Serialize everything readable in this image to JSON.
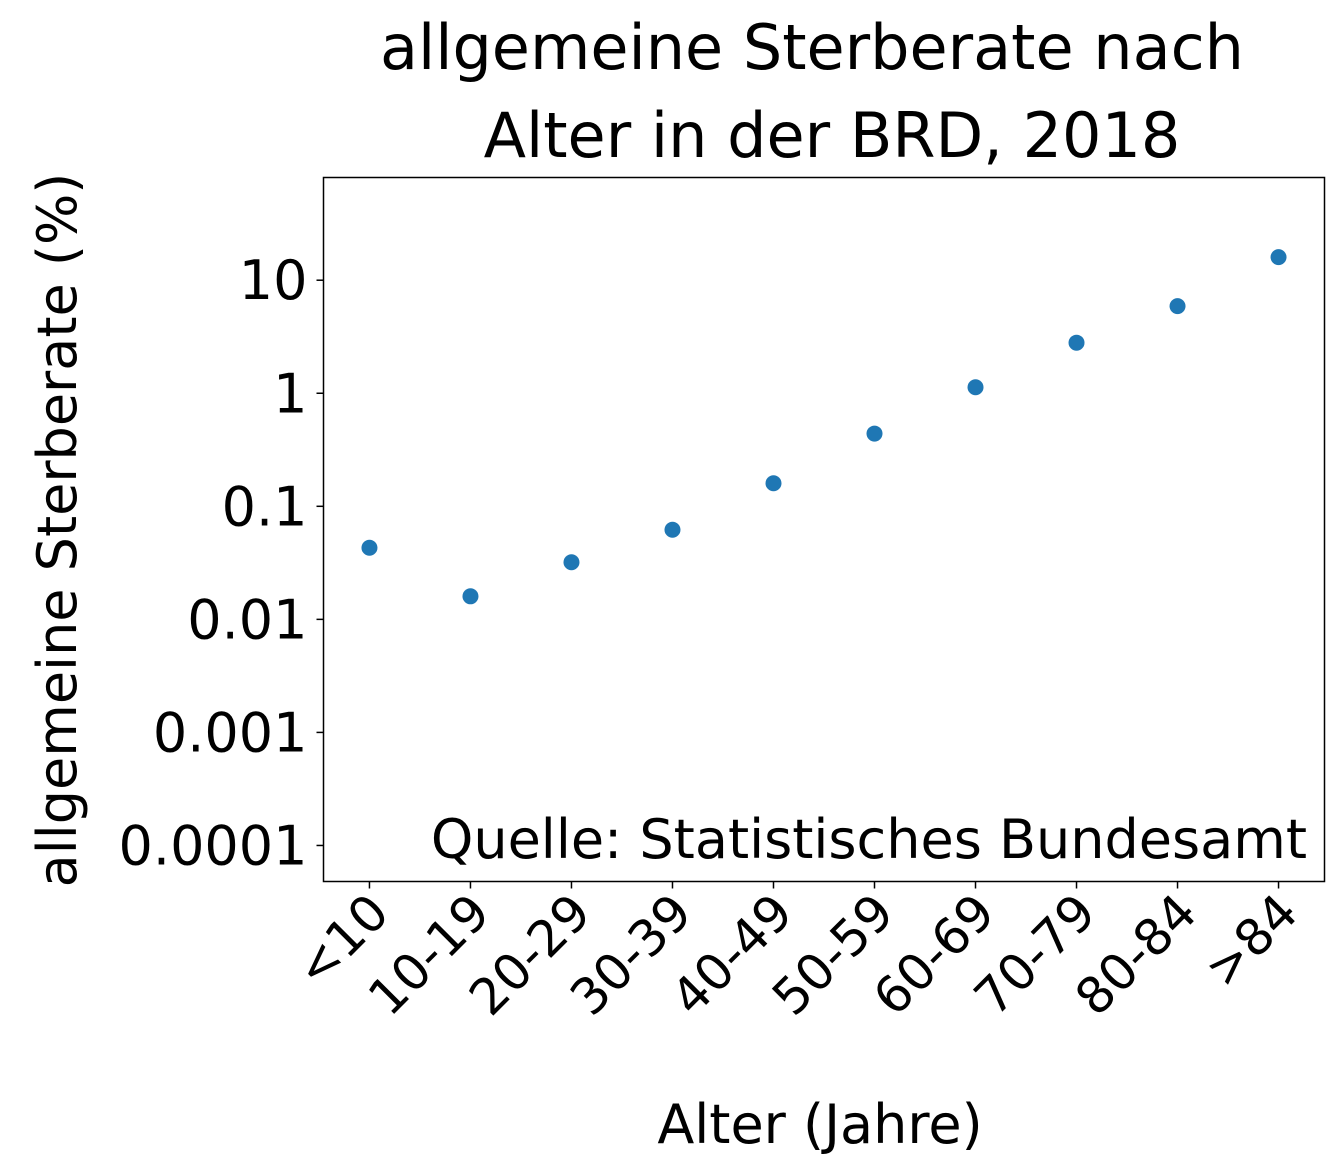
{
  "chart_data": {
    "type": "scatter",
    "title": [
      "allgemeine Sterberate nach",
      "Alter in der BRD, 2018"
    ],
    "x_label": "Alter (Jahre)",
    "y_label": "allgemeine Sterberate (%)",
    "annotation": "Quelle: Statistisches Bundesamt",
    "categories": [
      "<10",
      "10-19",
      "20-29",
      "30-39",
      "40-49",
      "50-59",
      "60-69",
      "70-79",
      "80-84",
      ">84"
    ],
    "values": [
      0.043,
      0.016,
      0.032,
      0.062,
      0.16,
      0.44,
      1.13,
      2.8,
      5.9,
      16
    ],
    "color": "#1f77b4",
    "yscale": "log",
    "ylim": [
      4.8e-05,
      81
    ],
    "yticks": [
      0.0001,
      0.001,
      0.01,
      0.1,
      1,
      10
    ],
    "grid": false
  }
}
